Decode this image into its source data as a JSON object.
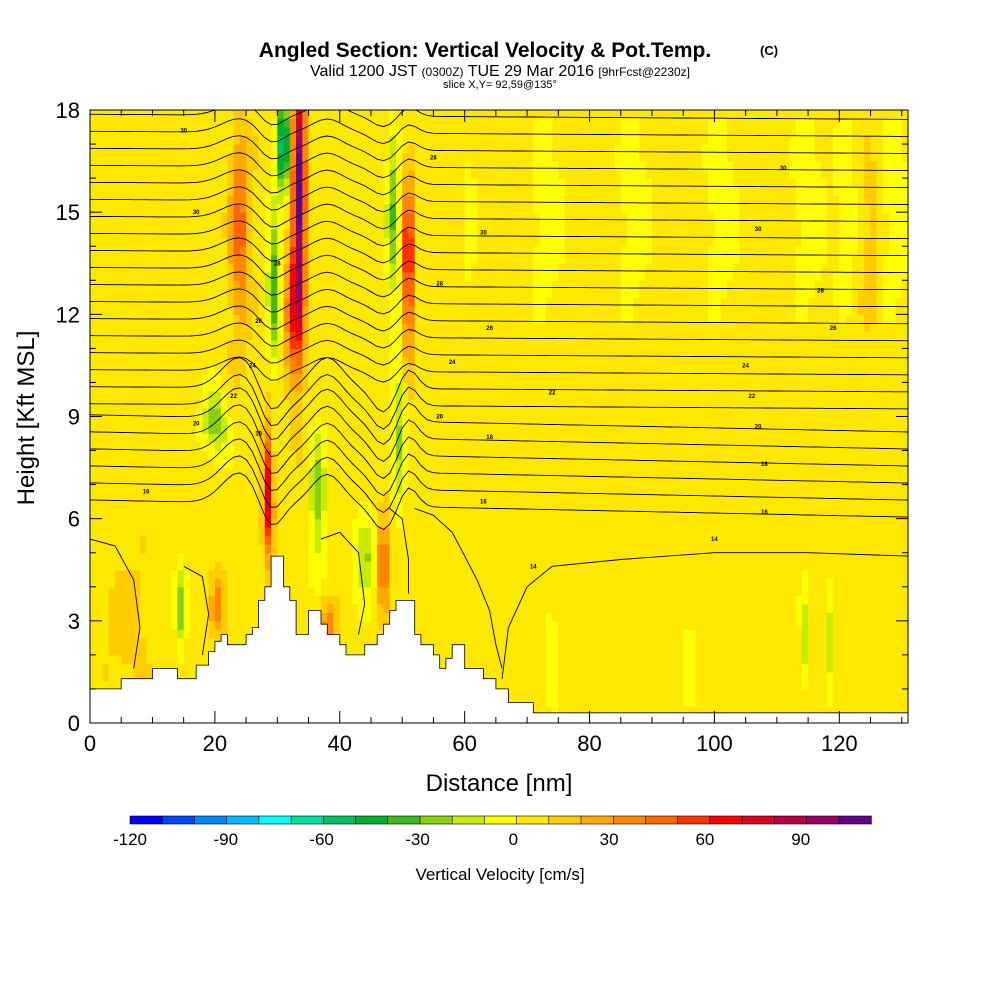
{
  "chart_data": {
    "type": "heatmap",
    "title_main": "Angled Section: Vertical Velocity & Pot.Temp.",
    "title_units": "(C)",
    "subtitle": {
      "valid": "Valid 1200 JST",
      "utc": "(0300Z)",
      "date": "TUE 29 Mar 2016",
      "fcst": "[9hrFcst@2230z]"
    },
    "slice_label": "slice X,Y= 92,59@135°",
    "xlabel": "Distance [nm]",
    "ylabel": "Height [Kft MSL]",
    "xlim": [
      0,
      131
    ],
    "ylim": [
      0,
      18
    ],
    "xticks": [
      0,
      20,
      40,
      60,
      80,
      100,
      120
    ],
    "yticks": [
      0,
      3,
      6,
      9,
      12,
      15,
      18
    ],
    "colorbar": {
      "label": "Vertical Velocity [cm/s]",
      "min": -120,
      "max": 112,
      "tick_labels": [
        -120,
        -90,
        -60,
        -30,
        0,
        30,
        60,
        90
      ],
      "colors": [
        "#0000ff",
        "#0044ff",
        "#0088ff",
        "#00bbff",
        "#00ffff",
        "#00e0a0",
        "#00c060",
        "#00b030",
        "#40b820",
        "#88d010",
        "#c8ec00",
        "#ffff00",
        "#ffe800",
        "#ffcc00",
        "#ffaa00",
        "#ff8800",
        "#ff6600",
        "#ff3300",
        "#ff0000",
        "#dd0022",
        "#bb0044",
        "#990066",
        "#660088"
      ]
    },
    "isentrope_labels": [
      {
        "text": "30",
        "x": 15,
        "y": 17.4
      },
      {
        "text": "28",
        "x": 55,
        "y": 16.6
      },
      {
        "text": "30",
        "x": 111,
        "y": 16.3
      },
      {
        "text": "30",
        "x": 17,
        "y": 15.0
      },
      {
        "text": "30",
        "x": 63,
        "y": 14.4
      },
      {
        "text": "30",
        "x": 107,
        "y": 14.5
      },
      {
        "text": "28",
        "x": 30,
        "y": 13.5
      },
      {
        "text": "28",
        "x": 56,
        "y": 12.9
      },
      {
        "text": "28",
        "x": 117,
        "y": 12.7
      },
      {
        "text": "26",
        "x": 27,
        "y": 11.8
      },
      {
        "text": "26",
        "x": 64,
        "y": 11.6
      },
      {
        "text": "26",
        "x": 119,
        "y": 11.6
      },
      {
        "text": "24",
        "x": 26,
        "y": 10.5
      },
      {
        "text": "24",
        "x": 58,
        "y": 10.6
      },
      {
        "text": "24",
        "x": 105,
        "y": 10.5
      },
      {
        "text": "22",
        "x": 23,
        "y": 9.6
      },
      {
        "text": "22",
        "x": 74,
        "y": 9.7
      },
      {
        "text": "22",
        "x": 106,
        "y": 9.6
      },
      {
        "text": "20",
        "x": 17,
        "y": 8.8
      },
      {
        "text": "20",
        "x": 56,
        "y": 9.0
      },
      {
        "text": "20",
        "x": 107,
        "y": 8.7
      },
      {
        "text": "18",
        "x": 27,
        "y": 8.5
      },
      {
        "text": "18",
        "x": 64,
        "y": 8.4
      },
      {
        "text": "18",
        "x": 108,
        "y": 7.6
      },
      {
        "text": "16",
        "x": 9,
        "y": 6.8
      },
      {
        "text": "16",
        "x": 63,
        "y": 6.5
      },
      {
        "text": "16",
        "x": 108,
        "y": 6.2
      },
      {
        "text": "14",
        "x": 71,
        "y": 4.6
      },
      {
        "text": "14",
        "x": 100,
        "y": 5.4
      }
    ],
    "terrain": [
      [
        0,
        1.0
      ],
      [
        5,
        1.0
      ],
      [
        5,
        1.3
      ],
      [
        10,
        1.3
      ],
      [
        10,
        1.6
      ],
      [
        14,
        1.6
      ],
      [
        14,
        1.3
      ],
      [
        17,
        1.3
      ],
      [
        17,
        1.7
      ],
      [
        19,
        1.7
      ],
      [
        19,
        2.1
      ],
      [
        20,
        2.1
      ],
      [
        20,
        2.4
      ],
      [
        21,
        2.4
      ],
      [
        21,
        2.6
      ],
      [
        22,
        2.6
      ],
      [
        22,
        2.3
      ],
      [
        25,
        2.3
      ],
      [
        25,
        2.6
      ],
      [
        26,
        2.6
      ],
      [
        26,
        2.8
      ],
      [
        27,
        2.8
      ],
      [
        27,
        3.6
      ],
      [
        28,
        3.6
      ],
      [
        28,
        4.0
      ],
      [
        29,
        4.0
      ],
      [
        29,
        4.9
      ],
      [
        31,
        4.9
      ],
      [
        31,
        4.0
      ],
      [
        32,
        4.0
      ],
      [
        32,
        3.6
      ],
      [
        33,
        3.6
      ],
      [
        33,
        2.6
      ],
      [
        35,
        2.6
      ],
      [
        35,
        3.3
      ],
      [
        37,
        3.3
      ],
      [
        37,
        2.9
      ],
      [
        38,
        2.9
      ],
      [
        38,
        2.6
      ],
      [
        40,
        2.6
      ],
      [
        40,
        2.3
      ],
      [
        41,
        2.3
      ],
      [
        41,
        2.0
      ],
      [
        44,
        2.0
      ],
      [
        44,
        2.3
      ],
      [
        46,
        2.3
      ],
      [
        46,
        2.6
      ],
      [
        47,
        2.6
      ],
      [
        47,
        2.9
      ],
      [
        48,
        2.9
      ],
      [
        48,
        3.3
      ],
      [
        49,
        3.3
      ],
      [
        49,
        3.6
      ],
      [
        52,
        3.6
      ],
      [
        52,
        2.6
      ],
      [
        53,
        2.6
      ],
      [
        53,
        2.3
      ],
      [
        55,
        2.3
      ],
      [
        55,
        2.0
      ],
      [
        56,
        2.0
      ],
      [
        56,
        1.6
      ],
      [
        57,
        1.6
      ],
      [
        57,
        1.9
      ],
      [
        58,
        1.9
      ],
      [
        58,
        2.3
      ],
      [
        60,
        2.3
      ],
      [
        60,
        1.6
      ],
      [
        63,
        1.6
      ],
      [
        63,
        1.3
      ],
      [
        65,
        1.3
      ],
      [
        65,
        1.0
      ],
      [
        67,
        1.0
      ],
      [
        67,
        0.6
      ],
      [
        71,
        0.6
      ],
      [
        71,
        0.3
      ],
      [
        131,
        0.3
      ],
      [
        131,
        0
      ]
    ],
    "updraft_cores": [
      {
        "x": 28.5,
        "y0": 4.5,
        "y1": 8.7,
        "w": 0.8,
        "peak": 70
      },
      {
        "x": 33.5,
        "y0": 11.0,
        "y1": 18.0,
        "w": 1.0,
        "peak": 100
      },
      {
        "x": 51.0,
        "y0": 11.0,
        "y1": 15.2,
        "w": 0.8,
        "peak": 70
      },
      {
        "x": 47.0,
        "y0": 3.0,
        "y1": 6.0,
        "w": 0.7,
        "peak": 60
      }
    ]
  }
}
